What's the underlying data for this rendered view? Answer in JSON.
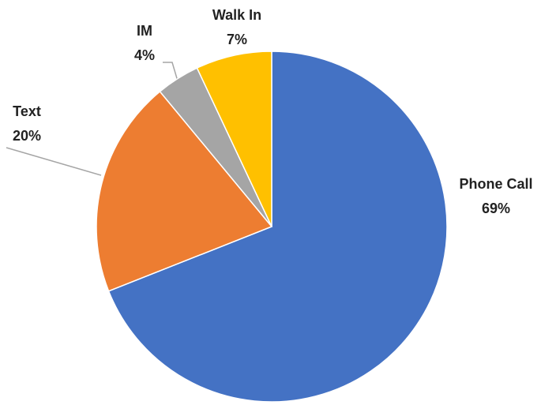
{
  "chart_data": {
    "type": "pie",
    "categories": [
      "Phone Call",
      "Text",
      "IM",
      "Walk In"
    ],
    "values": [
      69,
      20,
      4,
      7
    ],
    "value_labels": [
      "69%",
      "20%",
      "4%",
      "7%"
    ],
    "colors": [
      "#4472c4",
      "#ed7d31",
      "#a5a5a5",
      "#ffc000"
    ]
  }
}
